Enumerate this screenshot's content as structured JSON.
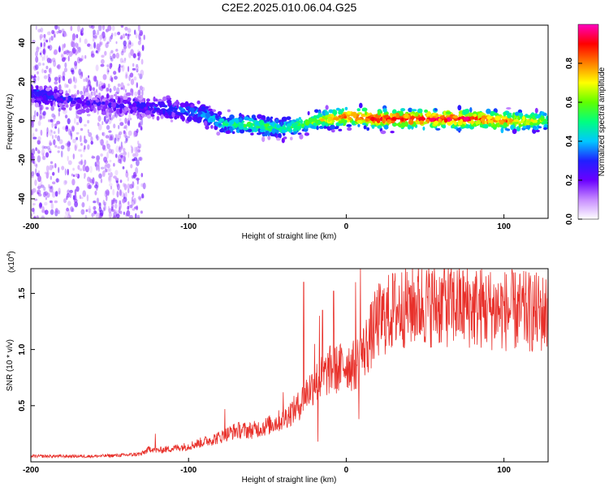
{
  "figure": {
    "title": "C2E2.2025.010.06.04.G25"
  },
  "chart_data": [
    {
      "type": "heatmap",
      "title": "C2E2.2025.010.06.04.G25",
      "xlabel": "Height of straight line (km)",
      "ylabel": "Frequency (Hz)",
      "xlim": [
        -200,
        128
      ],
      "ylim": [
        -50,
        49
      ],
      "x_ticks": [
        -200,
        -100,
        0,
        100
      ],
      "y_ticks": [
        -40,
        -20,
        0,
        20,
        40
      ],
      "colorbar": {
        "label": "Normalized spectral amplitude",
        "range": [
          0,
          1
        ],
        "ticks": [
          0.0,
          0.2,
          0.4,
          0.6,
          0.8
        ],
        "tick_labels": [
          "0.0",
          "0.2",
          "0.4",
          "0.6",
          "0.8"
        ],
        "colors": [
          "#ffffff",
          "#c78cff",
          "#6a00ff",
          "#2020ff",
          "#00c8ff",
          "#00ff80",
          "#60ff00",
          "#ffff00",
          "#ff8000",
          "#ff0000",
          "#ff00c0"
        ]
      },
      "ridge": {
        "x": [
          -200,
          -180,
          -160,
          -140,
          -120,
          -100,
          -90,
          -80,
          -70,
          -60,
          -50,
          -40,
          -30,
          -20,
          -10,
          0,
          10,
          20,
          40,
          60,
          80,
          100,
          128
        ],
        "freq": [
          14,
          11,
          9,
          8,
          7,
          5,
          3,
          -1,
          -2,
          -2,
          -3,
          -4,
          -2,
          0,
          1,
          2,
          2,
          1,
          1,
          1,
          1,
          0,
          0
        ],
        "amplitude": [
          0.35,
          0.25,
          0.2,
          0.25,
          0.3,
          0.35,
          0.4,
          0.45,
          0.5,
          0.55,
          0.55,
          0.5,
          0.6,
          0.65,
          0.75,
          0.85,
          0.9,
          0.95,
          0.95,
          0.95,
          0.9,
          0.85,
          0.6
        ]
      },
      "scatter_region": {
        "x_from": -200,
        "x_to": -128,
        "freq_from": -50,
        "freq_to": 49,
        "amplitude": 0.15
      }
    },
    {
      "type": "line",
      "xlabel": "Height of straight line (km)",
      "ylabel": "SNR (10 * v/v)",
      "y_multiplier": "(x10",
      "y_multiplier_exp": "4",
      "y_multiplier_close": ")",
      "xlim": [
        -200,
        128
      ],
      "ylim": [
        0,
        1.72
      ],
      "x_ticks": [
        -200,
        -100,
        0,
        100
      ],
      "y_ticks": [
        0.5,
        1.0,
        1.5
      ],
      "y_tick_labels": [
        "0.5",
        "1.0",
        "1.5"
      ],
      "color": "#e8302a",
      "envelope": {
        "x": [
          -200,
          -180,
          -160,
          -140,
          -130,
          -124,
          -120,
          -110,
          -100,
          -90,
          -80,
          -70,
          -60,
          -50,
          -40,
          -30,
          -25,
          -20,
          -15,
          -10,
          -5,
          0,
          5,
          10,
          15,
          20,
          30,
          40,
          50,
          60,
          80,
          100,
          128
        ],
        "y": [
          0.05,
          0.05,
          0.05,
          0.06,
          0.07,
          0.12,
          0.1,
          0.12,
          0.14,
          0.18,
          0.22,
          0.28,
          0.28,
          0.32,
          0.38,
          0.5,
          0.62,
          0.7,
          0.75,
          0.82,
          0.82,
          0.88,
          0.85,
          0.95,
          1.1,
          1.25,
          1.35,
          1.4,
          1.4,
          1.4,
          1.38,
          1.35,
          1.32
        ]
      },
      "spikes": [
        {
          "x": -121,
          "y": 0.25
        },
        {
          "x": -77,
          "y": 0.47
        },
        {
          "x": -40,
          "y": 0.62
        },
        {
          "x": -27,
          "y": 1.6
        },
        {
          "x": -20,
          "y": 1.05
        },
        {
          "x": -18,
          "y": 0.18
        },
        {
          "x": -17,
          "y": 1.3
        },
        {
          "x": -15,
          "y": 1.35
        },
        {
          "x": -8,
          "y": 1.52
        },
        {
          "x": 6,
          "y": 1.6
        },
        {
          "x": 8,
          "y": 0.38
        },
        {
          "x": 9,
          "y": 1.72
        },
        {
          "x": 40,
          "y": 1.55
        },
        {
          "x": 62,
          "y": 1.66
        },
        {
          "x": 128,
          "y": 1.7
        }
      ]
    }
  ]
}
